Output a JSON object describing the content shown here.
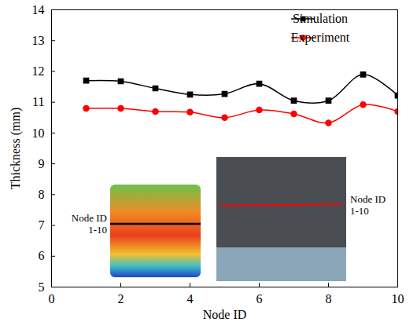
{
  "chart_data": {
    "type": "line",
    "x_label": "Node ID",
    "y_label": "Thickness (mm)",
    "x": [
      1,
      2,
      3,
      4,
      5,
      6,
      7,
      8,
      9,
      10
    ],
    "series": [
      {
        "name": "Simulation",
        "color": "#000000",
        "marker": "square",
        "line_style": "smooth",
        "values": [
          11.7,
          11.68,
          11.45,
          11.25,
          11.27,
          11.6,
          11.05,
          11.05,
          11.9,
          11.22
        ]
      },
      {
        "name": "Experiment",
        "color": "#ff0000",
        "marker": "circle",
        "line_style": "smooth",
        "values": [
          10.8,
          10.8,
          10.7,
          10.68,
          10.5,
          10.75,
          10.62,
          10.33,
          10.92,
          10.7
        ]
      }
    ],
    "xlim": [
      0,
      10
    ],
    "xticks": [
      0,
      2,
      4,
      6,
      8,
      10
    ],
    "ylim": [
      5,
      14
    ],
    "yticks": [
      5,
      6,
      7,
      8,
      9,
      10,
      11,
      12,
      13,
      14
    ],
    "legend": "top-right",
    "annotations": [
      "Node ID 1-10",
      "Node ID 1-10"
    ]
  }
}
